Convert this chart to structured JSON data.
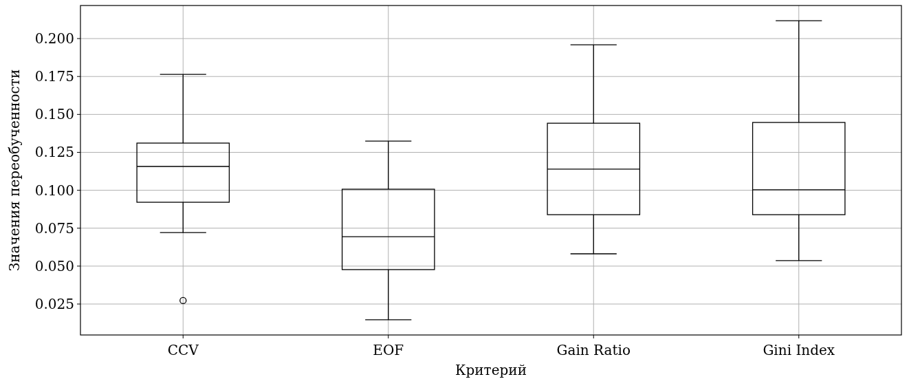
{
  "chart_data": {
    "type": "box",
    "xlabel": "Критерий",
    "ylabel": "Значения переобученности",
    "categories": [
      "CCV",
      "EOF",
      "Gain Ratio",
      "Gini Index"
    ],
    "boxes": [
      {
        "low": 0.0721,
        "q1": 0.0921,
        "median": 0.1157,
        "q3": 0.1311,
        "high": 0.1764,
        "outliers": [
          0.0273
        ]
      },
      {
        "low": 0.0146,
        "q1": 0.0477,
        "median": 0.0694,
        "q3": 0.1007,
        "high": 0.1324
      },
      {
        "low": 0.0581,
        "q1": 0.0839,
        "median": 0.1139,
        "q3": 0.1442,
        "high": 0.1959
      },
      {
        "low": 0.0536,
        "q1": 0.0839,
        "median": 0.1003,
        "q3": 0.1447,
        "high": 0.2118
      }
    ],
    "color": "#000000",
    "ylim": [
      0.0046,
      0.2218
    ],
    "yticks": [
      {
        "value": 0.025,
        "label": "0.025"
      },
      {
        "value": 0.05,
        "label": "0.050"
      },
      {
        "value": 0.075,
        "label": "0.075"
      },
      {
        "value": 0.1,
        "label": "0.100"
      },
      {
        "value": 0.125,
        "label": "0.125"
      },
      {
        "value": 0.15,
        "label": "0.150"
      },
      {
        "value": 0.175,
        "label": "0.175"
      },
      {
        "value": 0.2,
        "label": "0.200"
      }
    ],
    "grid": true,
    "marker": "circle"
  }
}
